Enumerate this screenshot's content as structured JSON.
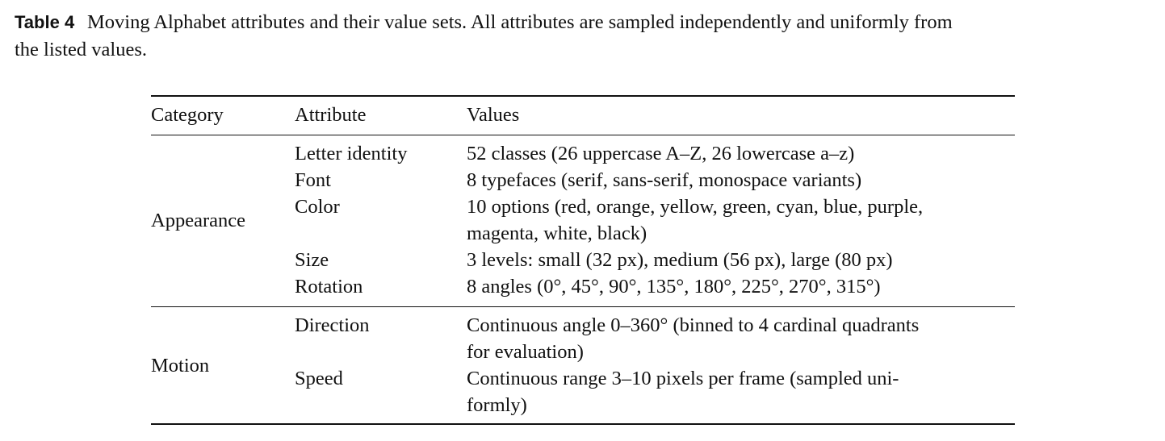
{
  "caption": {
    "label": "Table 4",
    "lines": [
      "Moving Alphabet attributes and their value sets. All attributes are sampled independently and uniformly from",
      "the listed values."
    ]
  },
  "table": {
    "header": [
      "Category",
      "Attribute",
      "Values"
    ],
    "groups": [
      {
        "category": "Appearance",
        "rows": [
          {
            "attribute": "Letter identity",
            "values": [
              "52 classes (26 uppercase A–Z, 26 lowercase a–z)"
            ]
          },
          {
            "attribute": "Font",
            "values": [
              "8 typefaces (serif, sans-serif, monospace variants)"
            ]
          },
          {
            "attribute": "Color",
            "values": [
              "10 options (red, orange, yellow, green, cyan, blue, purple,",
              "magenta, white, black)"
            ]
          },
          {
            "attribute": "Size",
            "values": [
              "3 levels: small (32 px), medium (56 px), large (80 px)"
            ]
          },
          {
            "attribute": "Rotation",
            "values": [
              "8 angles (0°, 45°, 90°, 135°, 180°, 225°, 270°, 315°)"
            ]
          }
        ]
      },
      {
        "category": "Motion",
        "rows": [
          {
            "attribute": "Direction",
            "values": [
              "Continuous angle 0–360° (binned to 4 cardinal quadrants",
              "for evaluation)"
            ]
          },
          {
            "attribute": "Speed",
            "values": [
              "Continuous range 3–10 pixels per frame (sampled uni-",
              "formly)"
            ]
          }
        ]
      }
    ]
  }
}
